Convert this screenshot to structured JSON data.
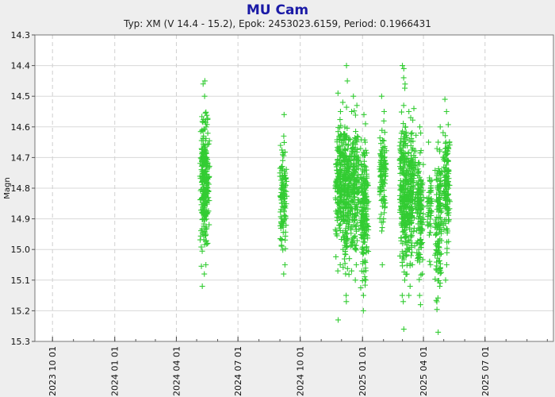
{
  "chart_data": {
    "type": "scatter",
    "title": "MU Cam",
    "subtitle": "Typ: XM (V 14.4 - 15.2), Epok: 2453023.6159, Period: 0.1966431",
    "xlabel": "",
    "ylabel": "Magn",
    "y_inverted": true,
    "ylim": [
      14.3,
      15.3
    ],
    "y_ticks": [
      "14.3",
      "14.4",
      "14.5",
      "14.6",
      "14.7",
      "14.8",
      "14.9",
      "15.0",
      "15.1",
      "15.2",
      "15.3"
    ],
    "xlim": [
      "2023-09-05",
      "2025-10-10"
    ],
    "x_ticks": [
      {
        "label": "2023 10 01",
        "date": "2023-10-01"
      },
      {
        "label": "2024 01 01",
        "date": "2024-01-01"
      },
      {
        "label": "2024 04 01",
        "date": "2024-04-01"
      },
      {
        "label": "2024 07 01",
        "date": "2024-07-01"
      },
      {
        "label": "2024 10 01",
        "date": "2024-10-01"
      },
      {
        "label": "2025 01 01",
        "date": "2025-01-01"
      },
      {
        "label": "2025 04 01",
        "date": "2025-04-01"
      },
      {
        "label": "2025 07 01",
        "date": "2025-07-01"
      }
    ],
    "grid": true,
    "marker": "+",
    "marker_color": "#33cc33",
    "series": [
      {
        "observations": [
          {
            "date": "2024-05-10",
            "min": 14.46,
            "max": 15.12
          },
          {
            "date": "2024-05-12",
            "min": 14.45,
            "max": 15.08
          },
          {
            "date": "2024-05-14",
            "min": 14.5,
            "max": 15.05
          },
          {
            "date": "2024-05-16",
            "min": 14.6,
            "max": 14.98
          },
          {
            "date": "2024-09-05",
            "min": 14.63,
            "max": 15.08
          },
          {
            "date": "2024-09-07",
            "min": 14.56,
            "max": 15.05
          },
          {
            "date": "2024-11-26",
            "min": 14.49,
            "max": 15.07
          },
          {
            "date": "2024-11-28",
            "min": 14.55,
            "max": 15.05
          },
          {
            "date": "2024-12-02",
            "min": 14.52,
            "max": 15.0
          },
          {
            "date": "2024-12-07",
            "min": 14.4,
            "max": 15.17
          },
          {
            "date": "2024-12-09",
            "min": 14.45,
            "max": 15.15
          },
          {
            "date": "2024-12-17",
            "min": 14.55,
            "max": 15.07
          },
          {
            "date": "2024-12-20",
            "min": 14.5,
            "max": 15.1
          },
          {
            "date": "2024-12-23",
            "min": 14.53,
            "max": 15.05
          },
          {
            "date": "2025-01-02",
            "min": 14.56,
            "max": 15.2
          },
          {
            "date": "2025-01-04",
            "min": 14.59,
            "max": 15.15
          },
          {
            "date": "2025-01-06",
            "min": 14.65,
            "max": 15.1
          },
          {
            "date": "2025-01-30",
            "min": 14.5,
            "max": 15.05
          },
          {
            "date": "2025-02-01",
            "min": 14.55,
            "max": 14.9
          },
          {
            "date": "2025-03-01",
            "min": 14.4,
            "max": 15.15
          },
          {
            "date": "2025-03-03",
            "min": 14.53,
            "max": 15.17
          },
          {
            "date": "2025-03-05",
            "min": 14.6,
            "max": 15.1
          },
          {
            "date": "2025-03-10",
            "min": 14.55,
            "max": 15.15
          },
          {
            "date": "2025-03-13",
            "min": 14.57,
            "max": 15.12
          },
          {
            "date": "2025-03-17",
            "min": 14.54,
            "max": 15.05
          },
          {
            "date": "2025-03-26",
            "min": 14.6,
            "max": 15.18
          },
          {
            "date": "2025-03-28",
            "min": 14.62,
            "max": 15.15
          },
          {
            "date": "2025-04-10",
            "min": 14.65,
            "max": 15.05
          },
          {
            "date": "2025-04-22",
            "min": 14.65,
            "max": 15.27
          },
          {
            "date": "2025-04-24",
            "min": 14.6,
            "max": 15.12
          },
          {
            "date": "2025-05-04",
            "min": 14.51,
            "max": 15.1
          },
          {
            "date": "2025-05-06",
            "min": 14.55,
            "max": 15.05
          }
        ],
        "outliers": [
          {
            "date": "2024-11-26",
            "mag": 15.23
          },
          {
            "date": "2025-03-03",
            "mag": 15.26
          },
          {
            "date": "2025-03-03",
            "mag": 14.41
          }
        ]
      }
    ]
  }
}
